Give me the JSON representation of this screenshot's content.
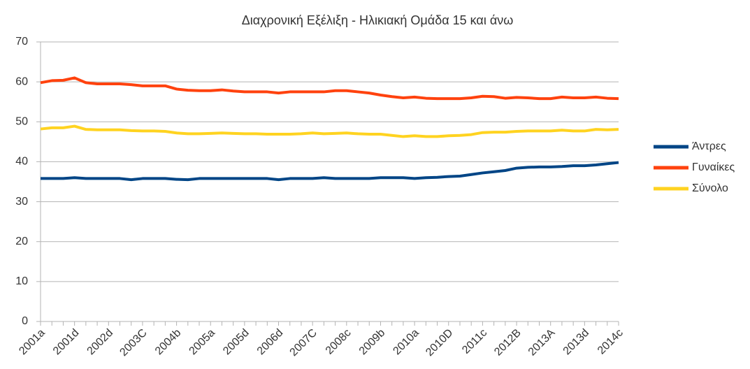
{
  "chart_data": {
    "type": "line",
    "title": "Διαχρονική Εξέλιξη - Ηλικιακή Ομάδα 15 και άνω",
    "categories": [
      "2001a",
      null,
      null,
      "2001d",
      null,
      null,
      "2002d",
      null,
      null,
      "2003C",
      null,
      null,
      "2004b",
      null,
      null,
      "2005a",
      null,
      null,
      "2005d",
      null,
      null,
      "2006d",
      null,
      null,
      "2007C",
      null,
      null,
      "2008c",
      null,
      null,
      "2009b",
      null,
      null,
      "2010a",
      null,
      null,
      "2010D",
      null,
      null,
      "2011c",
      null,
      null,
      "2012B",
      null,
      null,
      "2013A",
      null,
      null,
      "2013d",
      null,
      null,
      "2014c"
    ],
    "series": [
      {
        "name": "Άντρες",
        "color": "#004586",
        "values": [
          35.8,
          35.8,
          35.8,
          36,
          35.8,
          35.8,
          35.8,
          35.8,
          35.5,
          35.8,
          35.8,
          35.8,
          35.6,
          35.5,
          35.8,
          35.8,
          35.8,
          35.8,
          35.8,
          35.8,
          35.8,
          35.5,
          35.8,
          35.8,
          35.8,
          36,
          35.8,
          35.8,
          35.8,
          35.8,
          36,
          36,
          36,
          35.8,
          36,
          36.1,
          36.3,
          36.4,
          36.8,
          37.2,
          37.5,
          37.8,
          38.4,
          38.6,
          38.7,
          38.7,
          38.8,
          39,
          39,
          39.2,
          39.5,
          39.8
        ]
      },
      {
        "name": "Γυναίκες",
        "color": "#ff420e",
        "values": [
          59.8,
          60.3,
          60.4,
          61,
          59.8,
          59.5,
          59.5,
          59.5,
          59.3,
          59,
          59,
          59,
          58.2,
          57.9,
          57.8,
          57.8,
          58,
          57.7,
          57.5,
          57.5,
          57.5,
          57.2,
          57.5,
          57.5,
          57.5,
          57.5,
          57.8,
          57.8,
          57.5,
          57.2,
          56.7,
          56.3,
          56,
          56.2,
          55.9,
          55.8,
          55.8,
          55.8,
          56,
          56.4,
          56.3,
          55.9,
          56.1,
          56,
          55.8,
          55.8,
          56.2,
          56,
          56,
          56.2,
          55.9,
          55.8
        ]
      },
      {
        "name": "Σύνολο",
        "color": "#ffd320",
        "values": [
          48.2,
          48.5,
          48.5,
          48.9,
          48.1,
          48,
          48,
          48,
          47.8,
          47.7,
          47.7,
          47.6,
          47.2,
          47,
          47,
          47.1,
          47.2,
          47.1,
          47,
          47,
          46.9,
          46.9,
          46.9,
          47,
          47.2,
          47,
          47.1,
          47.2,
          47,
          46.9,
          46.9,
          46.6,
          46.3,
          46.5,
          46.3,
          46.3,
          46.5,
          46.6,
          46.8,
          47.3,
          47.4,
          47.4,
          47.6,
          47.7,
          47.7,
          47.7,
          47.9,
          47.7,
          47.7,
          48.1,
          48,
          48.1
        ]
      }
    ],
    "ylim": [
      0,
      70
    ],
    "yticks": [
      0,
      10,
      20,
      30,
      40,
      50,
      60,
      70
    ],
    "grid": true,
    "legend": "right"
  }
}
